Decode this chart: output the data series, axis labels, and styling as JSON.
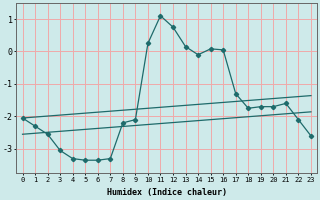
{
  "xlabel": "Humidex (Indice chaleur)",
  "x": [
    0,
    1,
    2,
    3,
    4,
    5,
    6,
    7,
    8,
    9,
    10,
    11,
    12,
    13,
    14,
    15,
    16,
    17,
    18,
    19,
    20,
    21,
    22,
    23
  ],
  "line_wavy": [
    -2.05,
    -2.3,
    -2.55,
    -3.05,
    -3.3,
    -3.35,
    -3.35,
    -3.3,
    -2.2,
    -2.1,
    0.25,
    1.1,
    0.75,
    0.15,
    -0.1,
    0.08,
    0.05,
    -1.3,
    -1.75,
    -1.7,
    -1.7,
    -1.6,
    -2.1,
    -2.6
  ],
  "line_upper": [
    -2.05,
    -2.02,
    -1.99,
    -1.96,
    -1.93,
    -1.9,
    -1.87,
    -1.84,
    -1.81,
    -1.78,
    -1.75,
    -1.72,
    -1.69,
    -1.66,
    -1.63,
    -1.6,
    -1.57,
    -1.54,
    -1.51,
    -1.48,
    -1.45,
    -1.42,
    -1.39,
    -1.36
  ],
  "line_lower": [
    -2.55,
    -2.52,
    -2.49,
    -2.46,
    -2.43,
    -2.4,
    -2.37,
    -2.34,
    -2.31,
    -2.28,
    -2.25,
    -2.22,
    -2.19,
    -2.16,
    -2.13,
    -2.1,
    -2.07,
    -2.04,
    -2.01,
    -1.98,
    -1.95,
    -1.92,
    -1.89,
    -1.86
  ],
  "color_line": "#1e6b6b",
  "color_bg": "#ceeaea",
  "color_grid": "#f0aaaa",
  "ylim": [
    -3.75,
    1.5
  ],
  "xlim": [
    -0.5,
    23.5
  ],
  "yticks": [
    1,
    0,
    -1,
    -2,
    -3
  ],
  "xticks": [
    0,
    1,
    2,
    3,
    4,
    5,
    6,
    7,
    8,
    9,
    10,
    11,
    12,
    13,
    14,
    15,
    16,
    17,
    18,
    19,
    20,
    21,
    22,
    23
  ]
}
